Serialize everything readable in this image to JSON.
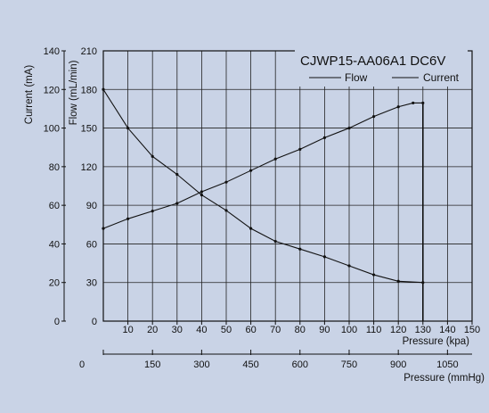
{
  "chart_data": {
    "type": "line",
    "title": "CJWP15-AA06A1 DC6V",
    "grid": true,
    "legend_position": "top-right",
    "x_kpa": {
      "label": "Pressure (kpa)",
      "range": [
        0,
        150
      ],
      "ticks": [
        "10",
        "20",
        "30",
        "40",
        "50",
        "60",
        "70",
        "80",
        "90",
        "100",
        "110",
        "120",
        "130",
        "140",
        "150"
      ]
    },
    "x_mmhg": {
      "label": "Pressure (mmHg)",
      "origin_label": "0",
      "ticks": [
        "150",
        "300",
        "450",
        "600",
        "750",
        "900",
        "1050"
      ]
    },
    "y_current": {
      "label": "Current (mA)",
      "range": [
        0,
        140
      ],
      "ticks": [
        "0",
        "20",
        "40",
        "60",
        "80",
        "100",
        "120",
        "140"
      ]
    },
    "y_flow": {
      "label": "Flow (mL/min)",
      "range": [
        0,
        210
      ],
      "ticks": [
        "0",
        "30",
        "60",
        "90",
        "120",
        "150",
        "180",
        "210"
      ]
    },
    "series": [
      {
        "name": "Flow",
        "axis": "flow",
        "x": [
          0,
          10,
          20,
          30,
          40,
          50,
          60,
          70,
          80,
          90,
          100,
          110,
          120,
          130
        ],
        "y": [
          180,
          150,
          128,
          114,
          98,
          86,
          72,
          62,
          56,
          50,
          43,
          36,
          31,
          30
        ]
      },
      {
        "name": "Current",
        "axis": "current",
        "x": [
          0,
          10,
          20,
          30,
          40,
          50,
          60,
          70,
          80,
          90,
          100,
          110,
          120,
          126,
          130
        ],
        "y": [
          48,
          53,
          57,
          61,
          67,
          72,
          78,
          84,
          89,
          95,
          100,
          106,
          111,
          113,
          113
        ]
      }
    ]
  }
}
